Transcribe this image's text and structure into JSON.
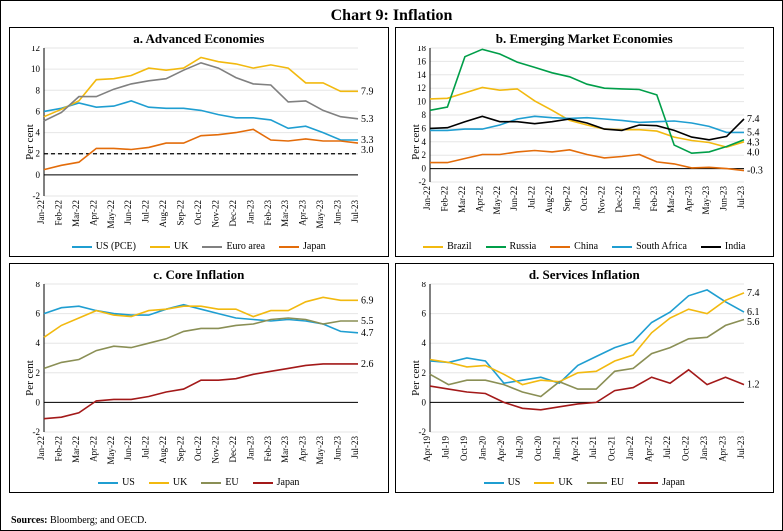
{
  "title": "Chart 9: Inflation",
  "sources_label": "Sources:",
  "sources_text": "Bloomberg; and OECD.",
  "ylabel": "Per cent",
  "colors": {
    "us": "#1f9ed1",
    "uk": "#f2b90f",
    "euro": "#808080",
    "japan": "#e36c0a",
    "brazil": "#f2b90f",
    "russia": "#009e49",
    "china": "#e36c0a",
    "sa": "#1f9ed1",
    "india": "#000000",
    "eu": "#8a8f55",
    "jp_red": "#a31919",
    "grid": "#e6e6e6",
    "axis": "#000000",
    "dash": "#000000"
  },
  "panels": {
    "a": {
      "title": "a. Advanced Economies",
      "ylim": [
        -2,
        12
      ],
      "ytick_step": 2,
      "x_labels": [
        "Jan-22",
        "Feb-22",
        "Mar-22",
        "Apr-22",
        "May-22",
        "Jun-22",
        "Jul-22",
        "Aug-22",
        "Sep-22",
        "Oct-22",
        "Nov-22",
        "Dec-22",
        "Jan-23",
        "Feb-23",
        "Mar-23",
        "Apr-23",
        "May-23",
        "Jun-23",
        "Jul-23"
      ],
      "ref_line": 2.0,
      "series": [
        {
          "key": "us",
          "label": "US (PCE)",
          "color": "#1f9ed1",
          "data": [
            6.0,
            6.3,
            6.8,
            6.4,
            6.5,
            7.0,
            6.4,
            6.3,
            6.3,
            6.1,
            5.7,
            5.4,
            5.4,
            5.2,
            4.4,
            4.6,
            4.0,
            3.3,
            3.3
          ],
          "end_label": "3.3"
        },
        {
          "key": "uk",
          "label": "UK",
          "color": "#f2b90f",
          "data": [
            5.5,
            6.2,
            7.0,
            9.0,
            9.1,
            9.4,
            10.1,
            9.9,
            10.1,
            11.1,
            10.7,
            10.5,
            10.1,
            10.4,
            10.1,
            8.7,
            8.7,
            7.9,
            7.9
          ],
          "end_label": "7.9"
        },
        {
          "key": "euro",
          "label": "Euro area",
          "color": "#808080",
          "data": [
            5.1,
            5.9,
            7.4,
            7.4,
            8.1,
            8.6,
            8.9,
            9.1,
            9.9,
            10.6,
            10.1,
            9.2,
            8.6,
            8.5,
            6.9,
            7.0,
            6.1,
            5.5,
            5.3
          ],
          "end_label": "5.3"
        },
        {
          "key": "japan",
          "label": "Japan",
          "color": "#e36c0a",
          "data": [
            0.5,
            0.9,
            1.2,
            2.5,
            2.5,
            2.4,
            2.6,
            3.0,
            3.0,
            3.7,
            3.8,
            4.0,
            4.3,
            3.3,
            3.2,
            3.4,
            3.2,
            3.2,
            3.0
          ],
          "end_label": "3.0"
        }
      ]
    },
    "b": {
      "title": "b. Emerging Market Economies",
      "ylim": [
        -2,
        18
      ],
      "ytick_step": 2,
      "x_labels": [
        "Jan-22",
        "Feb-22",
        "Mar-22",
        "Apr-22",
        "May-22",
        "Jun-22",
        "Jul-22",
        "Aug-22",
        "Sep-22",
        "Oct-22",
        "Nov-22",
        "Dec-22",
        "Jan-23",
        "Feb-23",
        "Mar-23",
        "Apr-23",
        "May-23",
        "Jun-23",
        "Jul-23"
      ],
      "series": [
        {
          "key": "brazil",
          "label": "Brazil",
          "color": "#f2b90f",
          "data": [
            10.4,
            10.5,
            11.3,
            12.1,
            11.7,
            11.9,
            10.1,
            8.7,
            7.2,
            6.5,
            5.9,
            5.8,
            5.8,
            5.6,
            4.7,
            4.2,
            3.9,
            3.2,
            4.0
          ],
          "end_label": "4.0"
        },
        {
          "key": "russia",
          "label": "Russia",
          "color": "#009e49",
          "data": [
            8.7,
            9.2,
            16.7,
            17.8,
            17.1,
            15.9,
            15.1,
            14.3,
            13.7,
            12.6,
            12.0,
            11.9,
            11.8,
            11.0,
            3.5,
            2.3,
            2.5,
            3.3,
            4.3
          ],
          "end_label": "4.3"
        },
        {
          "key": "china",
          "label": "China",
          "color": "#e36c0a",
          "data": [
            0.9,
            0.9,
            1.5,
            2.1,
            2.1,
            2.5,
            2.7,
            2.5,
            2.8,
            2.1,
            1.6,
            1.8,
            2.1,
            1.0,
            0.7,
            0.1,
            0.2,
            0.0,
            -0.3
          ],
          "end_label": "-0.3"
        },
        {
          "key": "sa",
          "label": "South Africa",
          "color": "#1f9ed1",
          "data": [
            5.7,
            5.7,
            5.9,
            5.9,
            6.5,
            7.4,
            7.8,
            7.6,
            7.5,
            7.6,
            7.4,
            7.2,
            6.9,
            7.0,
            7.1,
            6.8,
            6.3,
            5.4,
            5.4
          ],
          "end_label": "5.4"
        },
        {
          "key": "india",
          "label": "India",
          "color": "#000000",
          "data": [
            6.0,
            6.1,
            7.0,
            7.8,
            7.0,
            7.0,
            6.7,
            7.0,
            7.4,
            6.8,
            5.9,
            5.7,
            6.5,
            6.4,
            5.7,
            4.7,
            4.3,
            4.8,
            7.4
          ],
          "end_label": "7.4"
        }
      ]
    },
    "c": {
      "title": "c. Core Inflation",
      "ylim": [
        -2,
        8
      ],
      "ytick_step": 2,
      "x_labels": [
        "Jan-22",
        "Feb-22",
        "Mar-22",
        "Apr-22",
        "May-22",
        "Jun-22",
        "Jul-22",
        "Aug-22",
        "Sep-22",
        "Oct-22",
        "Nov-22",
        "Dec-22",
        "Jan-23",
        "Feb-23",
        "Mar-23",
        "Apr-23",
        "May-23",
        "Jun-23",
        "Jul-23"
      ],
      "series": [
        {
          "key": "us",
          "label": "US",
          "color": "#1f9ed1",
          "data": [
            6.0,
            6.4,
            6.5,
            6.2,
            6.0,
            5.9,
            5.9,
            6.3,
            6.6,
            6.3,
            6.0,
            5.7,
            5.6,
            5.5,
            5.6,
            5.5,
            5.3,
            4.8,
            4.7
          ],
          "end_label": "4.7"
        },
        {
          "key": "uk",
          "label": "UK",
          "color": "#f2b90f",
          "data": [
            4.4,
            5.2,
            5.7,
            6.2,
            5.9,
            5.8,
            6.2,
            6.3,
            6.5,
            6.5,
            6.3,
            6.3,
            5.8,
            6.2,
            6.2,
            6.8,
            7.1,
            6.9,
            6.9
          ],
          "end_label": "6.9"
        },
        {
          "key": "eu",
          "label": "EU",
          "color": "#8a8f55",
          "data": [
            2.3,
            2.7,
            2.9,
            3.5,
            3.8,
            3.7,
            4.0,
            4.3,
            4.8,
            5.0,
            5.0,
            5.2,
            5.3,
            5.6,
            5.7,
            5.6,
            5.3,
            5.5,
            5.5
          ],
          "end_label": "5.5"
        },
        {
          "key": "jp",
          "label": "Japan",
          "color": "#a31919",
          "data": [
            -1.1,
            -1.0,
            -0.7,
            0.1,
            0.2,
            0.2,
            0.4,
            0.7,
            0.9,
            1.5,
            1.5,
            1.6,
            1.9,
            2.1,
            2.3,
            2.5,
            2.6,
            2.6,
            2.6
          ],
          "end_label": "2.6"
        }
      ]
    },
    "d": {
      "title": "d. Services Inflation",
      "ylim": [
        -2,
        8
      ],
      "ytick_step": 2,
      "x_labels": [
        "Apr-19",
        "Jul-19",
        "Oct-19",
        "Jan-20",
        "Apr-20",
        "Jul-20",
        "Oct-20",
        "Jan-21",
        "Apr-21",
        "Jul-21",
        "Oct-21",
        "Jan-22",
        "Apr-22",
        "Jul-22",
        "Oct-22",
        "Jan-23",
        "Apr-23",
        "Jul-23"
      ],
      "series": [
        {
          "key": "us",
          "label": "US",
          "color": "#1f9ed1",
          "data": [
            2.8,
            2.7,
            3.0,
            2.8,
            1.3,
            1.5,
            1.7,
            1.3,
            2.5,
            3.1,
            3.7,
            4.1,
            5.4,
            6.1,
            7.2,
            7.6,
            6.8,
            6.1
          ],
          "end_label": "6.1"
        },
        {
          "key": "uk",
          "label": "UK",
          "color": "#f2b90f",
          "data": [
            2.9,
            2.7,
            2.4,
            2.5,
            1.9,
            1.2,
            1.5,
            1.4,
            2.0,
            2.1,
            2.8,
            3.2,
            4.7,
            5.7,
            6.3,
            6.0,
            6.9,
            7.4
          ],
          "end_label": "7.4"
        },
        {
          "key": "eu",
          "label": "EU",
          "color": "#8a8f55",
          "data": [
            1.9,
            1.2,
            1.5,
            1.5,
            1.2,
            0.7,
            0.4,
            1.4,
            0.9,
            0.9,
            2.1,
            2.3,
            3.3,
            3.7,
            4.3,
            4.4,
            5.2,
            5.6
          ],
          "end_label": "5.6"
        },
        {
          "key": "jp",
          "label": "Japan",
          "color": "#a31919",
          "data": [
            1.1,
            0.9,
            0.7,
            0.6,
            0.0,
            -0.4,
            -0.5,
            -0.3,
            -0.1,
            0.0,
            0.8,
            1.0,
            1.7,
            1.3,
            2.2,
            1.2,
            1.7,
            1.2
          ],
          "end_label": "1.2"
        }
      ]
    }
  }
}
